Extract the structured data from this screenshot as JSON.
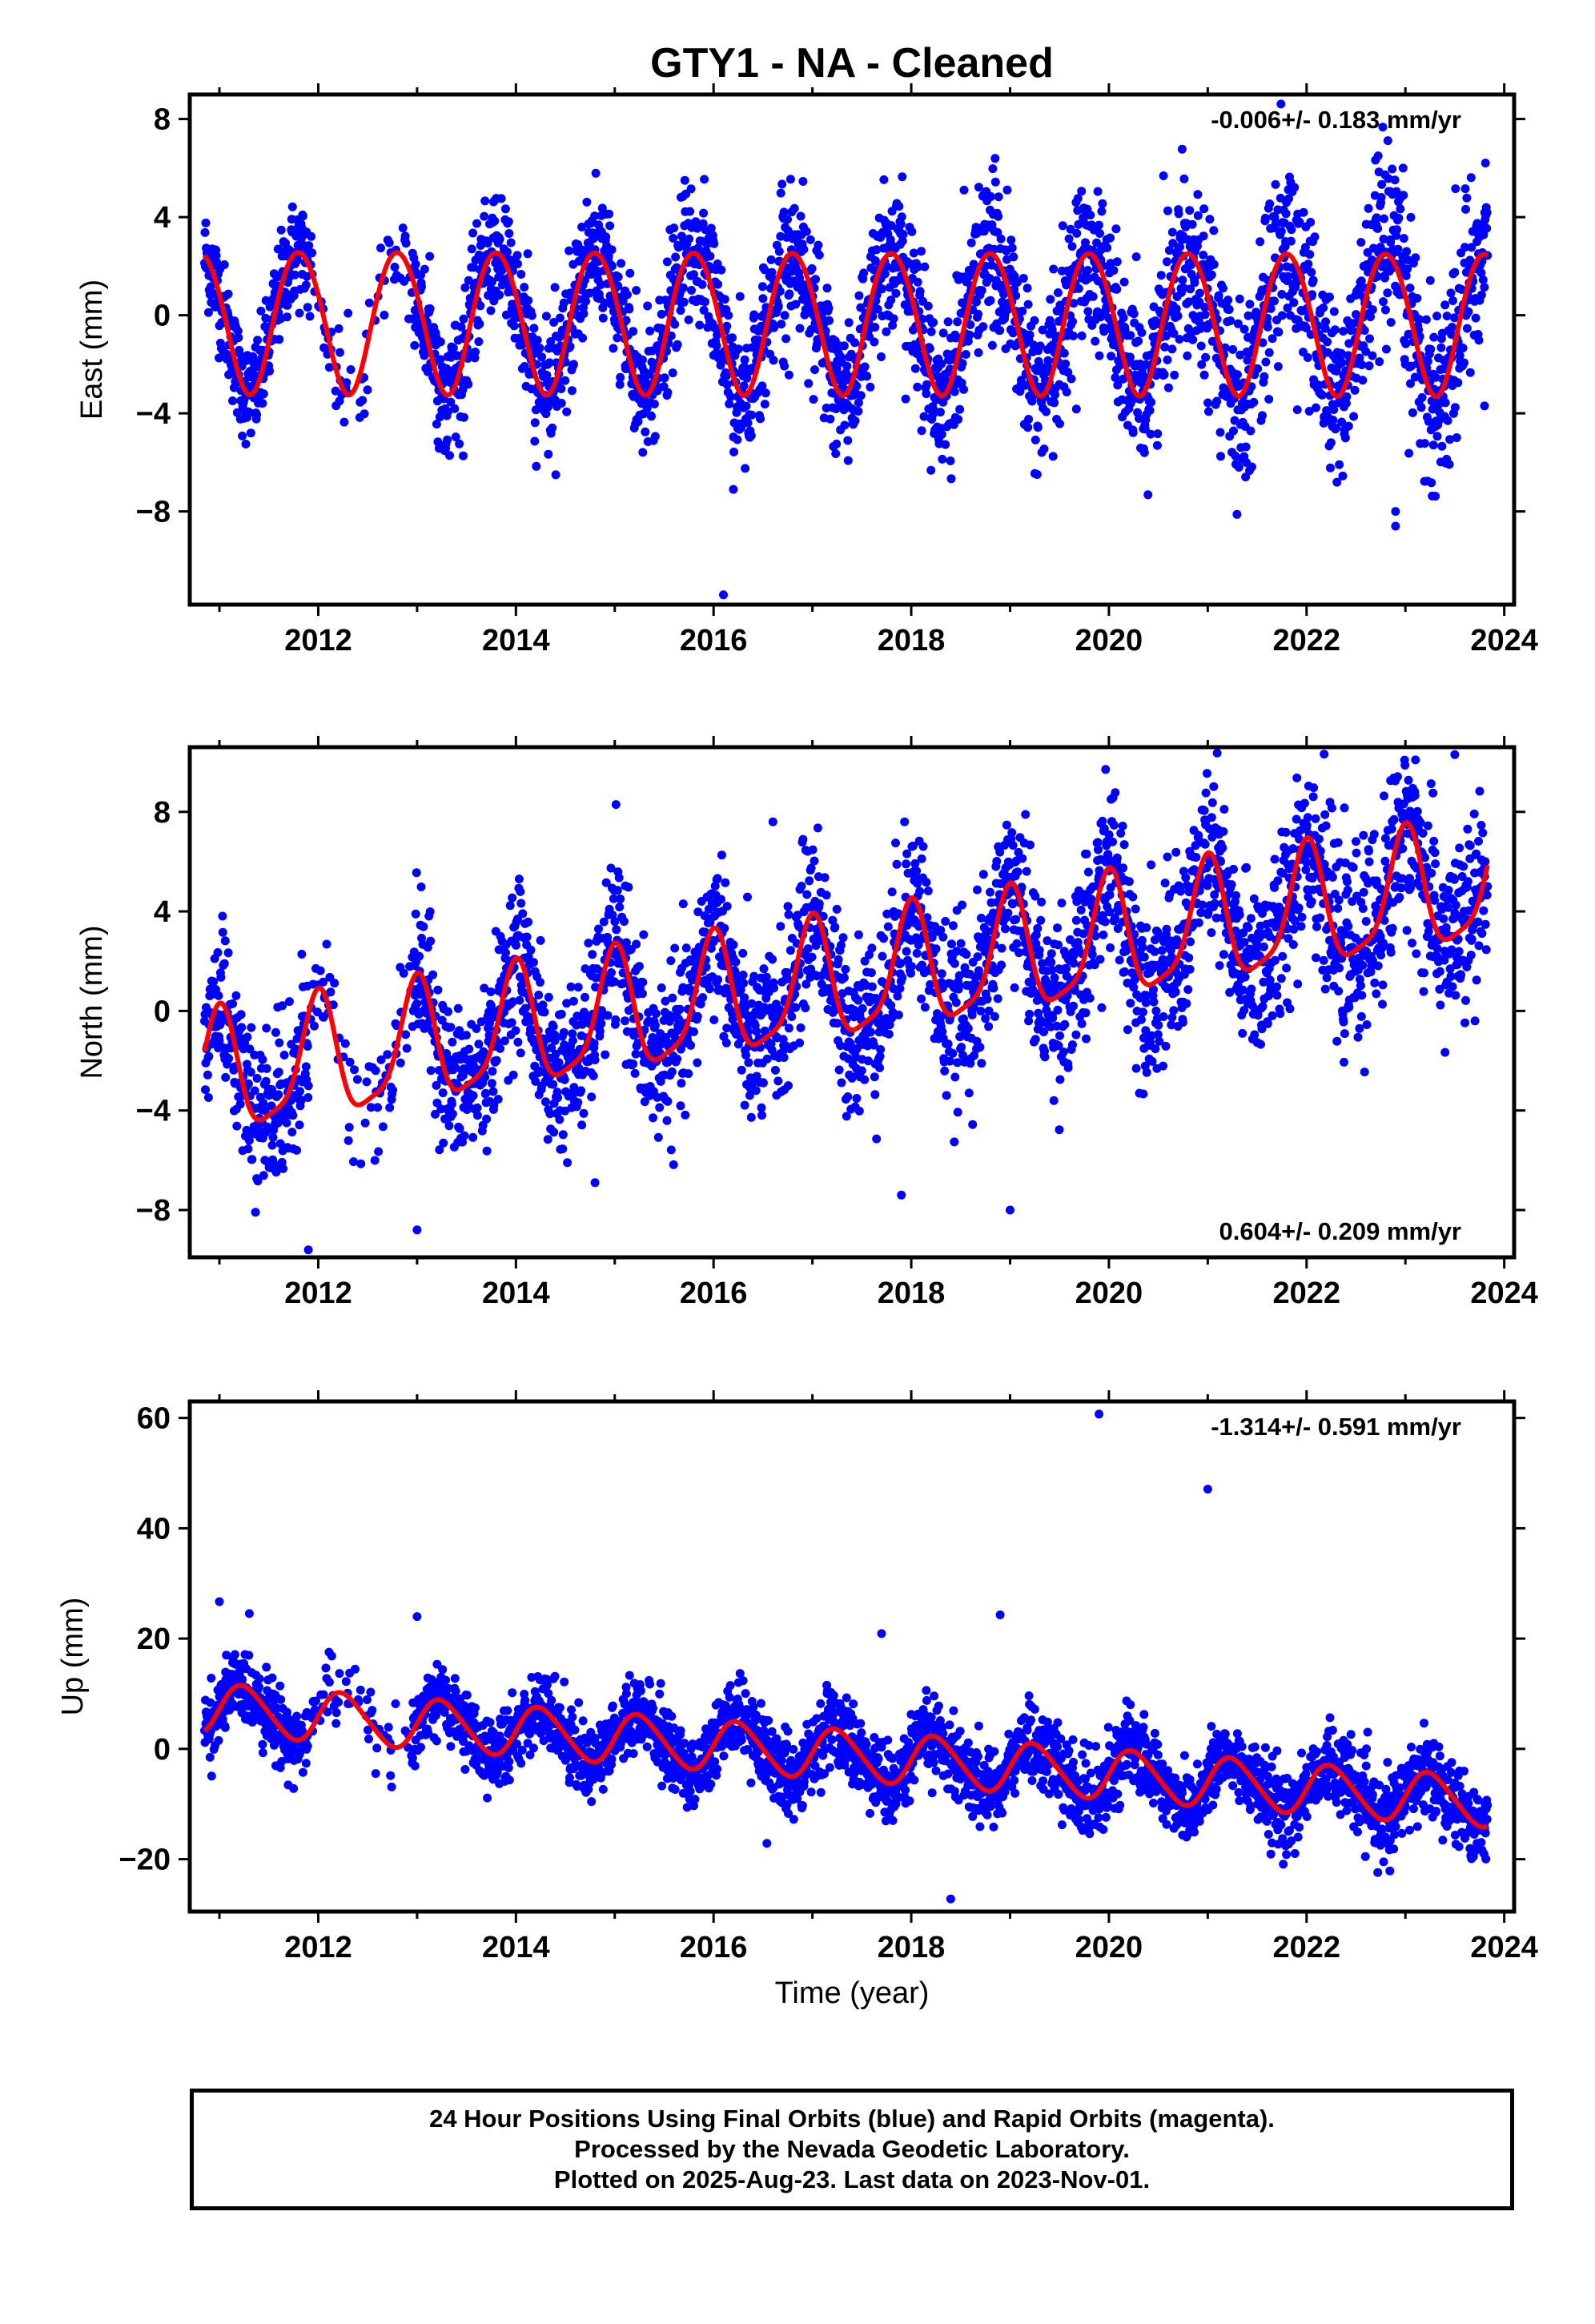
{
  "chart_data": {
    "title": "GTY1  - NA - Cleaned",
    "type": "scatter",
    "xlabel": "Time (year)",
    "x_ticks": [
      2012,
      2014,
      2016,
      2018,
      2020,
      2022,
      2024
    ],
    "xlim": [
      2010.7,
      2024.1
    ],
    "colors": {
      "points": "#0000ff",
      "model": "#ff0000",
      "axes": "#000000"
    },
    "panels": [
      {
        "name": "east",
        "ylabel": "East (mm)",
        "ylim": [
          -11.8,
          9.0
        ],
        "y_ticks": [
          -8,
          -4,
          0,
          4,
          8
        ],
        "velocity_text": "-0.006+/- 0.183 mm/yr",
        "velocity_position": "top-right",
        "model": {
          "trend_start": -0.2,
          "rate": -0.006,
          "annual_amp": 2.9,
          "annual_phase": 2.8,
          "semi_amp": 0.15,
          "semi_phase": 0.5
        },
        "scatter": {
          "noise_start": 1.0,
          "noise_end": 2.0
        },
        "outliers": [
          [
            2016.1,
            -11.4
          ],
          [
            2022.9,
            -8.6
          ],
          [
            2016.2,
            -7.1
          ],
          [
            2022.9,
            -8.0
          ],
          [
            2023.8,
            -3.7
          ]
        ]
      },
      {
        "name": "north",
        "ylabel": "North (mm)",
        "ylim": [
          -9.9,
          10.6
        ],
        "y_ticks": [
          -8,
          -4,
          0,
          4,
          8
        ],
        "velocity_text": "0.604+/- 0.209 mm/yr",
        "velocity_position": "bottom-right",
        "model": {
          "trend_start": -2.85,
          "rate": 0.604,
          "annual_amp": 2.4,
          "annual_phase": 1.6,
          "semi_amp": 0.6,
          "semi_phase": 1.3
        },
        "scatter": {
          "noise_start": 1.4,
          "noise_end": 1.9
        },
        "outliers": [
          [
            2011.9,
            -9.6
          ],
          [
            2013.0,
            -8.8
          ],
          [
            2016.6,
            7.6
          ],
          [
            2017.9,
            -7.4
          ],
          [
            2019.0,
            -8.0
          ],
          [
            2014.8,
            -6.9
          ],
          [
            2023.5,
            10.3
          ]
        ]
      },
      {
        "name": "up",
        "ylabel": "Up (mm)",
        "ylim": [
          -29.5,
          63.0
        ],
        "y_ticks": [
          -20,
          0,
          20,
          40,
          60
        ],
        "velocity_text": "-1.314+/- 0.591 mm/yr",
        "velocity_position": "top-right",
        "model": {
          "trend_start": 7.6,
          "rate": -1.314,
          "annual_amp": 4.5,
          "annual_phase": 0.0,
          "semi_amp": 0.5,
          "semi_phase": 0.0
        },
        "scatter": {
          "noise_start": 3.2,
          "noise_end": 3.6
        },
        "outliers": [
          [
            2019.9,
            60.7
          ],
          [
            2021.0,
            47.1
          ],
          [
            2018.4,
            -27.2
          ],
          [
            2018.9,
            24.3
          ],
          [
            2011.0,
            26.7
          ],
          [
            2013.0,
            24.0
          ],
          [
            2017.7,
            20.9
          ]
        ]
      }
    ]
  },
  "footer": {
    "line1": "24 Hour Positions Using Final Orbits (blue) and Rapid Orbits (magenta).",
    "line2": "Processed by the Nevada Geodetic Laboratory.",
    "line3": "Plotted on 2025-Aug-23. Last data on 2023-Nov-01."
  }
}
